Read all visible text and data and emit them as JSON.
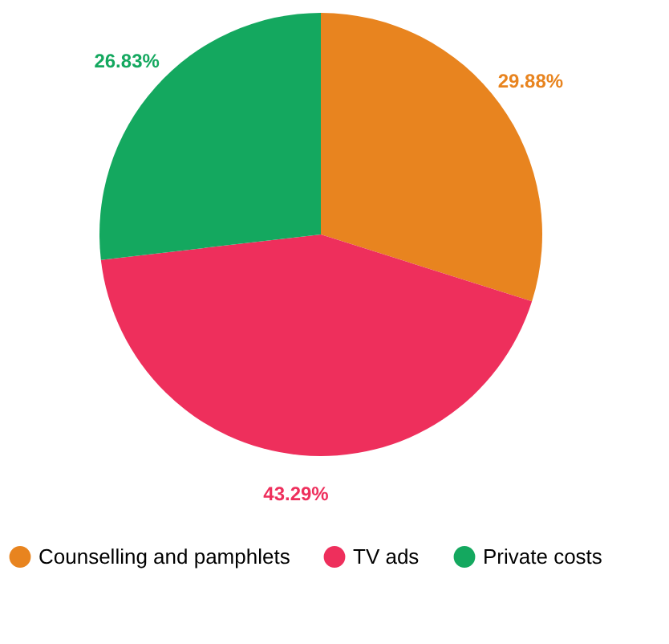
{
  "chart_data": {
    "type": "pie",
    "categories": [
      "Counselling and pamphlets",
      "TV ads",
      "Private costs"
    ],
    "values": [
      29.88,
      43.29,
      26.83
    ],
    "colors": [
      "#e8841f",
      "#ee2f5c",
      "#14a85f"
    ],
    "value_labels": [
      "29.88%",
      "43.29%",
      "26.83%"
    ],
    "legend": "bottom"
  }
}
